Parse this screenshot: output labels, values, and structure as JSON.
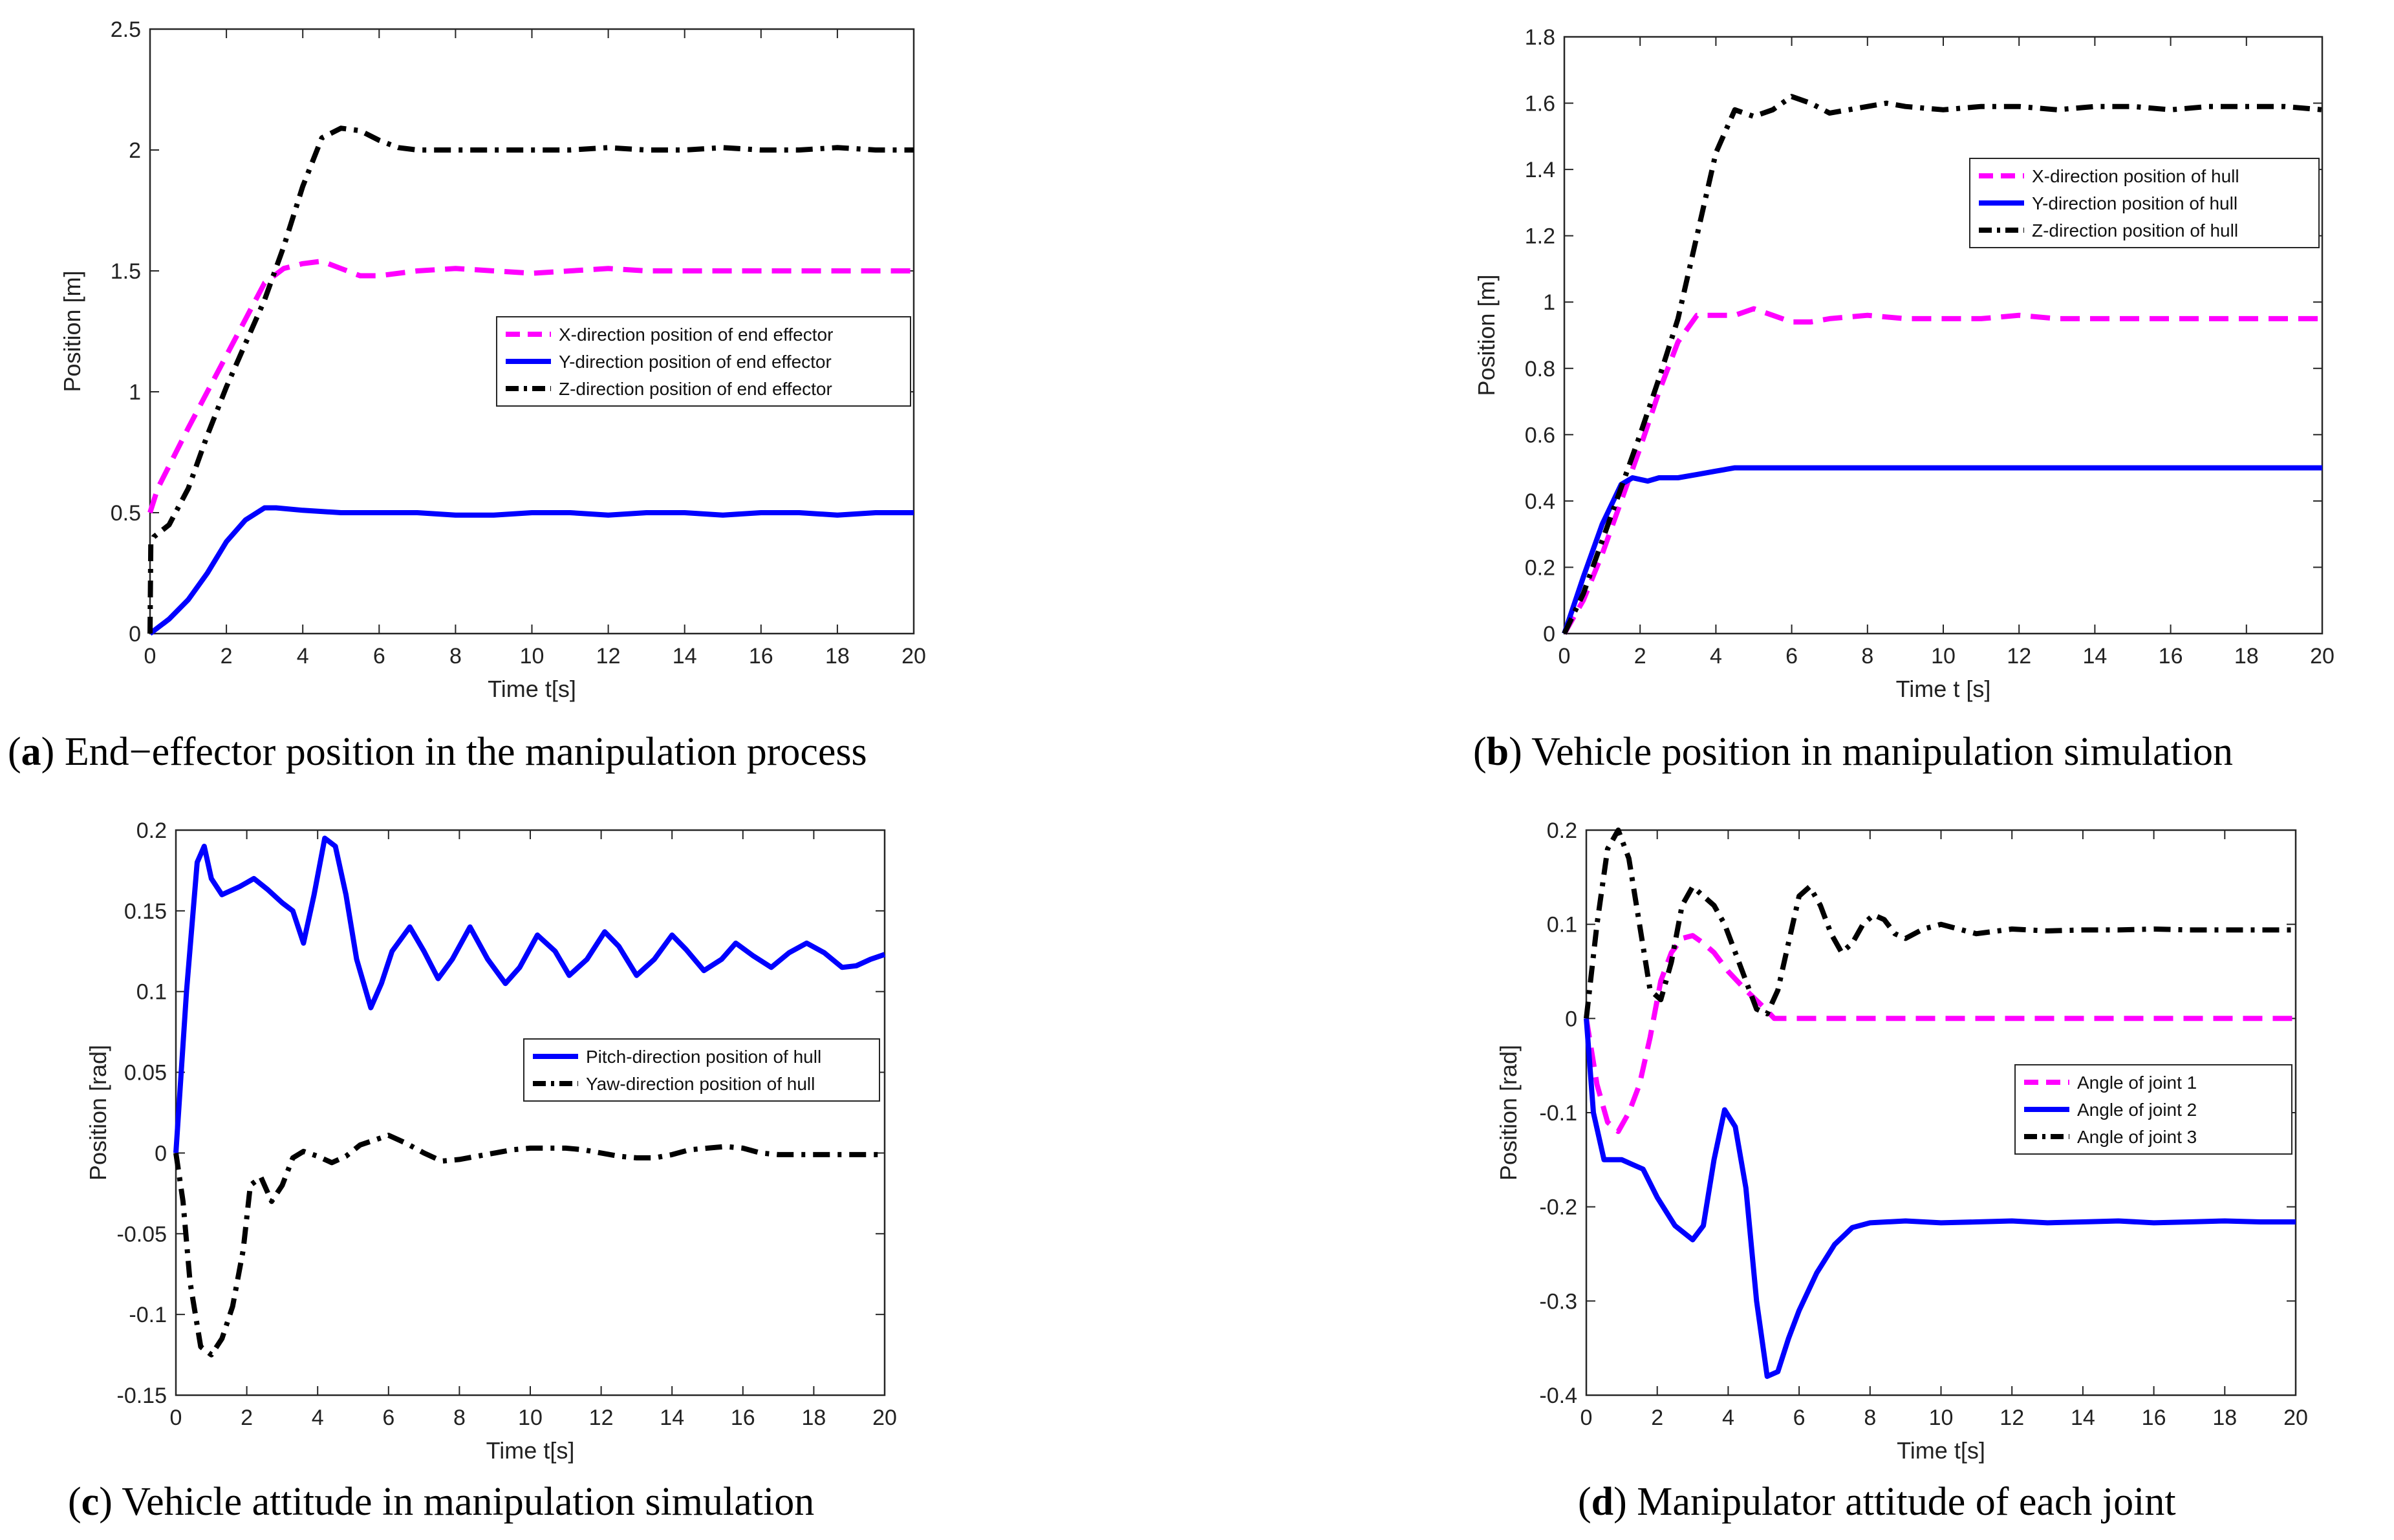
{
  "figure": {
    "captions": [
      {
        "letter": "a",
        "text": "End−effector position in the manipulation process"
      },
      {
        "letter": "b",
        "text": "Vehicle position in manipulation simulation"
      },
      {
        "letter": "c",
        "text": "Vehicle attitude in manipulation simulation"
      },
      {
        "letter": "d",
        "text": "Manipulator attitude of each joint"
      }
    ]
  },
  "chart_data": [
    {
      "type": "line",
      "title": "",
      "xlabel": "Time t[s]",
      "ylabel": "Position [m]",
      "xlim": [
        0,
        20
      ],
      "ylim": [
        0,
        2.5
      ],
      "xticks": [
        0,
        2,
        4,
        6,
        8,
        10,
        12,
        14,
        16,
        18,
        20
      ],
      "yticks": [
        0,
        0.5,
        1,
        1.5,
        2,
        2.5
      ],
      "ytick_labels": [
        "0",
        "0.5",
        "1",
        "1.5",
        "2",
        "2.5"
      ],
      "legend_position": "middle-right",
      "series": [
        {
          "name": "X-direction position of end effector",
          "color": "#ff00ff",
          "style": "dashed",
          "x": [
            0,
            0.2,
            1,
            2,
            3,
            3.5,
            4,
            4.5,
            5,
            5.5,
            6,
            7,
            8,
            9,
            10,
            11,
            12,
            13,
            14,
            15,
            16,
            17,
            18,
            19,
            20
          ],
          "y": [
            0.5,
            0.6,
            0.85,
            1.15,
            1.45,
            1.51,
            1.53,
            1.54,
            1.51,
            1.48,
            1.48,
            1.5,
            1.51,
            1.5,
            1.49,
            1.5,
            1.51,
            1.5,
            1.5,
            1.5,
            1.5,
            1.5,
            1.5,
            1.5,
            1.5
          ]
        },
        {
          "name": "Y-direction position of end effector",
          "color": "#0000ff",
          "style": "solid",
          "x": [
            0,
            0.5,
            1,
            1.5,
            2,
            2.5,
            3,
            3.3,
            4,
            5,
            6,
            7,
            8,
            9,
            10,
            11,
            12,
            13,
            14,
            15,
            16,
            17,
            18,
            19,
            20
          ],
          "y": [
            0.0,
            0.06,
            0.14,
            0.25,
            0.38,
            0.47,
            0.52,
            0.52,
            0.51,
            0.5,
            0.5,
            0.5,
            0.49,
            0.49,
            0.5,
            0.5,
            0.49,
            0.5,
            0.5,
            0.49,
            0.5,
            0.5,
            0.49,
            0.5,
            0.5
          ]
        },
        {
          "name": "Z-direction position of end effector",
          "color": "#000000",
          "style": "dashdot",
          "x": [
            0,
            0.02,
            0.1,
            0.5,
            1,
            1.5,
            2,
            2.5,
            3,
            3.5,
            4,
            4.5,
            5,
            5.5,
            6,
            6.5,
            7,
            8,
            9,
            10,
            11,
            12,
            13,
            14,
            15,
            16,
            17,
            18,
            19,
            20
          ],
          "y": [
            0.0,
            0.37,
            0.4,
            0.45,
            0.6,
            0.82,
            1.02,
            1.2,
            1.38,
            1.6,
            1.85,
            2.05,
            2.09,
            2.08,
            2.04,
            2.01,
            2.0,
            2.0,
            2.0,
            2.0,
            2.0,
            2.01,
            2.0,
            2.0,
            2.01,
            2.0,
            2.0,
            2.01,
            2.0,
            2.0
          ]
        }
      ]
    },
    {
      "type": "line",
      "title": "",
      "xlabel": "Time t [s]",
      "ylabel": "Position [m]",
      "xlim": [
        0,
        20
      ],
      "ylim": [
        0,
        1.8
      ],
      "xticks": [
        0,
        2,
        4,
        6,
        8,
        10,
        12,
        14,
        16,
        18,
        20
      ],
      "yticks": [
        0,
        0.2,
        0.4,
        0.6,
        0.8,
        1,
        1.2,
        1.4,
        1.6,
        1.8
      ],
      "ytick_labels": [
        "0",
        "0.2",
        "0.4",
        "0.6",
        "0.8",
        "1",
        "1.2",
        "1.4",
        "1.6",
        "1.8"
      ],
      "legend_position": "top-right",
      "series": [
        {
          "name": "X-direction position of hull",
          "color": "#ff00ff",
          "style": "dashed",
          "x": [
            0,
            0.5,
            1,
            1.5,
            2,
            2.5,
            3,
            3.5,
            4,
            4.5,
            5,
            5.5,
            6,
            6.5,
            7,
            8,
            9,
            10,
            11,
            12,
            13,
            14,
            15,
            16,
            17,
            18,
            19,
            20
          ],
          "y": [
            0.0,
            0.1,
            0.24,
            0.4,
            0.56,
            0.73,
            0.88,
            0.96,
            0.96,
            0.96,
            0.98,
            0.96,
            0.94,
            0.94,
            0.95,
            0.96,
            0.95,
            0.95,
            0.95,
            0.96,
            0.95,
            0.95,
            0.95,
            0.95,
            0.95,
            0.95,
            0.95,
            0.95
          ]
        },
        {
          "name": "Y-direction position of hull",
          "color": "#0000ff",
          "style": "solid",
          "x": [
            0,
            0.5,
            1,
            1.5,
            1.8,
            2.2,
            2.5,
            3,
            3.5,
            4,
            4.5,
            5,
            5.5,
            6,
            7,
            8,
            9,
            10,
            11,
            12,
            13,
            14,
            15,
            16,
            17,
            18,
            19,
            20
          ],
          "y": [
            0.0,
            0.17,
            0.33,
            0.45,
            0.47,
            0.46,
            0.47,
            0.47,
            0.48,
            0.49,
            0.5,
            0.5,
            0.5,
            0.5,
            0.5,
            0.5,
            0.5,
            0.5,
            0.5,
            0.5,
            0.5,
            0.5,
            0.5,
            0.5,
            0.5,
            0.5,
            0.5,
            0.5
          ]
        },
        {
          "name": "Z-direction position of hull",
          "color": "#000000",
          "style": "dashdot",
          "x": [
            0,
            0.5,
            1,
            1.5,
            2,
            2.5,
            3,
            3.5,
            4,
            4.5,
            5,
            5.5,
            6,
            6.5,
            7,
            7.5,
            8,
            8.5,
            9,
            10,
            11,
            12,
            13,
            14,
            15,
            16,
            17,
            18,
            19,
            20
          ],
          "y": [
            0.0,
            0.12,
            0.28,
            0.44,
            0.6,
            0.77,
            0.95,
            1.2,
            1.45,
            1.58,
            1.56,
            1.58,
            1.62,
            1.6,
            1.57,
            1.58,
            1.59,
            1.6,
            1.59,
            1.58,
            1.59,
            1.59,
            1.58,
            1.59,
            1.59,
            1.58,
            1.59,
            1.59,
            1.59,
            1.58
          ]
        }
      ]
    },
    {
      "type": "line",
      "title": "",
      "xlabel": "Time t[s]",
      "ylabel": "Position [rad]",
      "xlim": [
        0,
        20
      ],
      "ylim": [
        -0.15,
        0.2
      ],
      "xticks": [
        0,
        2,
        4,
        6,
        8,
        10,
        12,
        14,
        16,
        18,
        20
      ],
      "yticks": [
        -0.15,
        -0.1,
        -0.05,
        0,
        0.05,
        0.1,
        0.15,
        0.2
      ],
      "ytick_labels": [
        "-0.15",
        "-0.1",
        "-0.05",
        "0",
        "0.05",
        "0.1",
        "0.15",
        "0.2"
      ],
      "legend_position": "middle-right",
      "series": [
        {
          "name": "Pitch-direction position of hull",
          "color": "#0000ff",
          "style": "solid",
          "x": [
            0,
            0.3,
            0.6,
            0.8,
            1.0,
            1.3,
            1.8,
            2.2,
            2.6,
            3.0,
            3.3,
            3.6,
            3.9,
            4.2,
            4.5,
            4.8,
            5.1,
            5.5,
            5.8,
            6.1,
            6.6,
            7.0,
            7.4,
            7.8,
            8.3,
            8.8,
            9.3,
            9.7,
            10.2,
            10.7,
            11.1,
            11.6,
            12.1,
            12.5,
            13.0,
            13.5,
            14.0,
            14.4,
            14.9,
            15.4,
            15.8,
            16.3,
            16.8,
            17.3,
            17.8,
            18.3,
            18.8,
            19.2,
            19.6,
            20
          ],
          "y": [
            0.0,
            0.1,
            0.18,
            0.19,
            0.17,
            0.16,
            0.165,
            0.17,
            0.163,
            0.155,
            0.15,
            0.13,
            0.16,
            0.195,
            0.19,
            0.16,
            0.12,
            0.09,
            0.105,
            0.125,
            0.14,
            0.125,
            0.108,
            0.12,
            0.14,
            0.12,
            0.105,
            0.115,
            0.135,
            0.125,
            0.11,
            0.12,
            0.137,
            0.128,
            0.11,
            0.12,
            0.135,
            0.126,
            0.113,
            0.12,
            0.13,
            0.122,
            0.115,
            0.124,
            0.13,
            0.124,
            0.115,
            0.116,
            0.12,
            0.123
          ]
        },
        {
          "name": "Yaw-direction position of hull",
          "color": "#000000",
          "style": "dashdot",
          "x": [
            0,
            0.2,
            0.4,
            0.7,
            1.0,
            1.3,
            1.6,
            1.9,
            2.1,
            2.4,
            2.7,
            3.0,
            3.3,
            3.6,
            4.0,
            4.4,
            4.8,
            5.2,
            5.6,
            6.0,
            6.5,
            7.0,
            7.5,
            8.0,
            8.5,
            9.0,
            9.5,
            10.0,
            10.5,
            11.0,
            11.5,
            12.0,
            12.5,
            13.0,
            13.5,
            14.0,
            14.5,
            15.0,
            15.5,
            16.0,
            16.5,
            17.0,
            17.5,
            18.0,
            18.5,
            19.0,
            19.5,
            20
          ],
          "y": [
            0.0,
            -0.03,
            -0.08,
            -0.12,
            -0.125,
            -0.115,
            -0.095,
            -0.06,
            -0.02,
            -0.015,
            -0.03,
            -0.02,
            -0.003,
            0.001,
            -0.002,
            -0.006,
            -0.002,
            0.005,
            0.008,
            0.011,
            0.006,
            0.0,
            -0.005,
            -0.004,
            -0.002,
            0.0,
            0.002,
            0.003,
            0.003,
            0.003,
            0.002,
            0.0,
            -0.002,
            -0.003,
            -0.003,
            -0.001,
            0.002,
            0.003,
            0.004,
            0.003,
            0.0,
            -0.001,
            -0.001,
            -0.001,
            -0.001,
            -0.001,
            -0.001,
            -0.001
          ]
        }
      ]
    },
    {
      "type": "line",
      "title": "",
      "xlabel": "Time t[s]",
      "ylabel": "Position [rad]",
      "xlim": [
        0,
        20
      ],
      "ylim": [
        -0.4,
        0.2
      ],
      "xticks": [
        0,
        2,
        4,
        6,
        8,
        10,
        12,
        14,
        16,
        18,
        20
      ],
      "yticks": [
        -0.4,
        -0.3,
        -0.2,
        -0.1,
        0,
        0.1,
        0.2
      ],
      "ytick_labels": [
        "-0.4",
        "-0.3",
        "-0.2",
        "-0.1",
        "0",
        "0.1",
        "0.2"
      ],
      "legend_position": "middle-right",
      "series": [
        {
          "name": "Angle of joint 1",
          "color": "#ff00ff",
          "style": "dashed",
          "x": [
            0,
            0.3,
            0.6,
            0.9,
            1.2,
            1.5,
            1.8,
            2.1,
            2.4,
            2.7,
            3.0,
            3.3,
            3.6,
            4.0,
            4.5,
            5.0,
            5.3,
            6,
            7,
            8,
            9,
            10,
            11,
            12,
            13,
            14,
            15,
            16,
            17,
            18,
            19,
            20
          ],
          "y": [
            0.0,
            -0.07,
            -0.11,
            -0.12,
            -0.1,
            -0.07,
            -0.02,
            0.04,
            0.07,
            0.085,
            0.088,
            0.08,
            0.07,
            0.05,
            0.03,
            0.012,
            0.0,
            0.0,
            0.0,
            0.0,
            0.0,
            0.0,
            0.0,
            0.0,
            0.0,
            0.0,
            0.0,
            0.0,
            0.0,
            0.0,
            0.0,
            0.0
          ]
        },
        {
          "name": "Angle of joint 2",
          "color": "#0000ff",
          "style": "solid",
          "x": [
            0,
            0.2,
            0.5,
            0.8,
            1.0,
            1.3,
            1.6,
            2.0,
            2.5,
            3.0,
            3.3,
            3.6,
            3.9,
            4.2,
            4.5,
            4.8,
            5.1,
            5.4,
            5.7,
            6.0,
            6.5,
            7.0,
            7.5,
            8.0,
            9.0,
            10.0,
            11.0,
            12.0,
            13.0,
            14.0,
            15.0,
            16.0,
            17.0,
            18.0,
            19.0,
            20.0
          ],
          "y": [
            0.0,
            -0.1,
            -0.15,
            -0.15,
            -0.15,
            -0.155,
            -0.16,
            -0.19,
            -0.22,
            -0.235,
            -0.22,
            -0.15,
            -0.097,
            -0.115,
            -0.18,
            -0.3,
            -0.38,
            -0.375,
            -0.34,
            -0.31,
            -0.27,
            -0.24,
            -0.222,
            -0.217,
            -0.215,
            -0.217,
            -0.216,
            -0.215,
            -0.217,
            -0.216,
            -0.215,
            -0.217,
            -0.216,
            -0.215,
            -0.216,
            -0.216
          ]
        },
        {
          "name": "Angle of joint 3",
          "color": "#000000",
          "style": "dashdot",
          "x": [
            0,
            0.3,
            0.6,
            0.9,
            1.2,
            1.5,
            1.8,
            2.1,
            2.4,
            2.7,
            3.0,
            3.3,
            3.6,
            3.9,
            4.2,
            4.5,
            4.8,
            5.1,
            5.4,
            5.7,
            6.0,
            6.3,
            6.6,
            6.9,
            7.2,
            7.5,
            7.8,
            8.1,
            8.4,
            8.7,
            9.0,
            9.5,
            10.0,
            10.5,
            11,
            12,
            13,
            14,
            15,
            16,
            17,
            18,
            19,
            20
          ],
          "y": [
            0.0,
            0.1,
            0.18,
            0.2,
            0.17,
            0.1,
            0.03,
            0.02,
            0.06,
            0.12,
            0.14,
            0.13,
            0.12,
            0.1,
            0.07,
            0.04,
            0.01,
            0.005,
            0.03,
            0.08,
            0.13,
            0.14,
            0.12,
            0.09,
            0.07,
            0.08,
            0.1,
            0.11,
            0.105,
            0.09,
            0.085,
            0.095,
            0.1,
            0.095,
            0.09,
            0.095,
            0.093,
            0.094,
            0.094,
            0.095,
            0.094,
            0.094,
            0.094,
            0.094
          ]
        }
      ]
    }
  ]
}
